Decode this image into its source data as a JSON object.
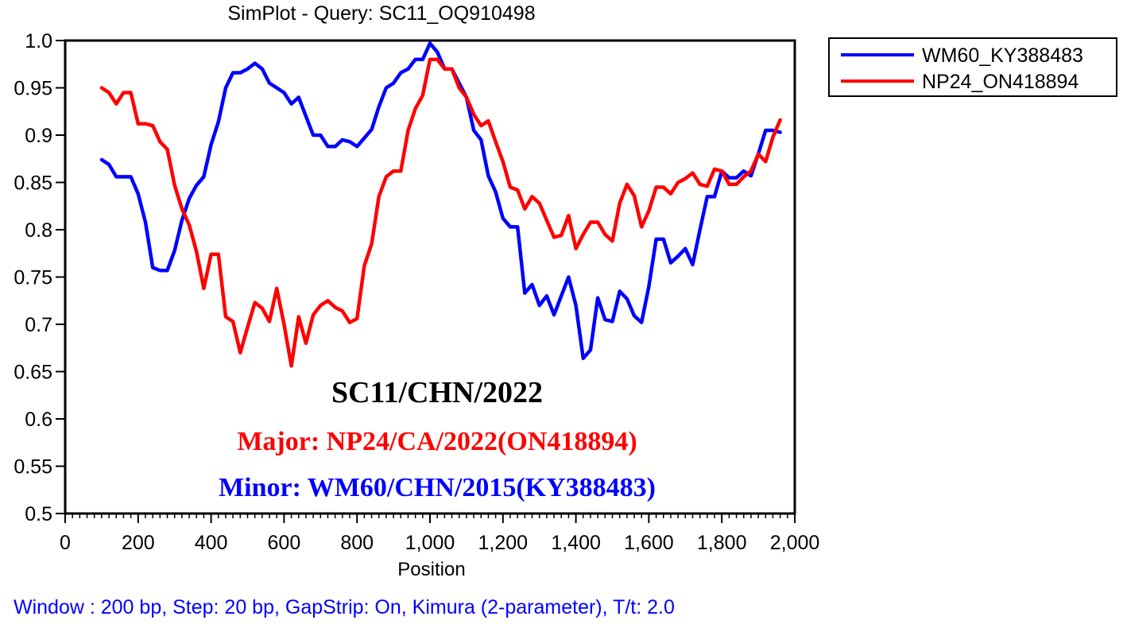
{
  "chart_data": {
    "type": "line",
    "title": "SimPlot - Query: SC11_OQ910498",
    "xlabel": "Position",
    "ylabel": "",
    "xlim": [
      0,
      2000
    ],
    "ylim": [
      0.5,
      1.0
    ],
    "x_ticks": [
      0,
      200,
      400,
      600,
      800,
      1000,
      1200,
      1400,
      1600,
      1800,
      2000
    ],
    "x_tick_labels": [
      "0",
      "200",
      "400",
      "600",
      "800",
      "1,000",
      "1,200",
      "1,400",
      "1,600",
      "1,800",
      "2,000"
    ],
    "y_ticks": [
      0.5,
      0.55,
      0.6,
      0.65,
      0.7,
      0.75,
      0.8,
      0.85,
      0.9,
      0.95,
      1.0
    ],
    "y_tick_labels": [
      "0.5",
      "0.55",
      "0.6",
      "0.65",
      "0.7",
      "0.75",
      "0.8",
      "0.85",
      "0.9",
      "0.95",
      "1.0"
    ],
    "grid": false,
    "legend_position": "outside-top-right",
    "series": [
      {
        "name": "WM60_KY388483",
        "color": "#0000ff",
        "x": [
          100,
          120,
          140,
          160,
          180,
          200,
          220,
          240,
          260,
          280,
          300,
          320,
          340,
          360,
          380,
          400,
          420,
          440,
          460,
          480,
          500,
          520,
          540,
          560,
          580,
          600,
          620,
          640,
          660,
          680,
          700,
          720,
          740,
          760,
          780,
          800,
          820,
          840,
          860,
          880,
          900,
          920,
          940,
          960,
          980,
          1000,
          1020,
          1040,
          1060,
          1080,
          1100,
          1120,
          1140,
          1160,
          1180,
          1200,
          1220,
          1240,
          1260,
          1280,
          1300,
          1320,
          1340,
          1360,
          1380,
          1400,
          1420,
          1440,
          1460,
          1480,
          1500,
          1520,
          1540,
          1560,
          1580,
          1600,
          1620,
          1640,
          1660,
          1680,
          1700,
          1720,
          1740,
          1760,
          1780,
          1800,
          1820,
          1840,
          1860,
          1880,
          1900,
          1920,
          1940,
          1960
        ],
        "values": [
          0.874,
          0.869,
          0.856,
          0.856,
          0.856,
          0.838,
          0.808,
          0.76,
          0.757,
          0.757,
          0.778,
          0.81,
          0.833,
          0.847,
          0.856,
          0.89,
          0.914,
          0.95,
          0.966,
          0.966,
          0.97,
          0.976,
          0.97,
          0.955,
          0.95,
          0.945,
          0.933,
          0.94,
          0.92,
          0.9,
          0.9,
          0.888,
          0.888,
          0.895,
          0.893,
          0.888,
          0.897,
          0.906,
          0.93,
          0.95,
          0.955,
          0.966,
          0.97,
          0.98,
          0.98,
          0.997,
          0.988,
          0.97,
          0.97,
          0.955,
          0.94,
          0.905,
          0.895,
          0.857,
          0.84,
          0.812,
          0.803,
          0.803,
          0.733,
          0.742,
          0.72,
          0.73,
          0.71,
          0.73,
          0.75,
          0.72,
          0.664,
          0.673,
          0.728,
          0.705,
          0.703,
          0.735,
          0.727,
          0.709,
          0.702,
          0.74,
          0.79,
          0.79,
          0.765,
          0.772,
          0.78,
          0.763,
          0.8,
          0.835,
          0.835,
          0.862,
          0.855,
          0.855,
          0.862,
          0.857,
          0.88,
          0.905,
          0.905,
          0.903
        ]
      },
      {
        "name": "NP24_ON418894",
        "color": "#ff0000",
        "x": [
          100,
          120,
          140,
          160,
          180,
          200,
          220,
          240,
          260,
          280,
          300,
          320,
          340,
          360,
          380,
          400,
          420,
          440,
          460,
          480,
          500,
          520,
          540,
          560,
          580,
          600,
          620,
          640,
          660,
          680,
          700,
          720,
          740,
          760,
          780,
          800,
          820,
          840,
          860,
          880,
          900,
          920,
          940,
          960,
          980,
          1000,
          1020,
          1040,
          1060,
          1080,
          1100,
          1120,
          1140,
          1160,
          1180,
          1200,
          1220,
          1240,
          1260,
          1280,
          1300,
          1320,
          1340,
          1360,
          1380,
          1400,
          1420,
          1440,
          1460,
          1480,
          1500,
          1520,
          1540,
          1560,
          1580,
          1600,
          1620,
          1640,
          1660,
          1680,
          1700,
          1720,
          1740,
          1760,
          1780,
          1800,
          1820,
          1840,
          1860,
          1880,
          1900,
          1920,
          1940,
          1960
        ],
        "values": [
          0.95,
          0.945,
          0.933,
          0.945,
          0.945,
          0.912,
          0.912,
          0.91,
          0.893,
          0.885,
          0.847,
          0.822,
          0.805,
          0.777,
          0.738,
          0.774,
          0.774,
          0.708,
          0.703,
          0.67,
          0.697,
          0.723,
          0.717,
          0.703,
          0.738,
          0.7,
          0.656,
          0.708,
          0.68,
          0.71,
          0.72,
          0.725,
          0.718,
          0.714,
          0.702,
          0.706,
          0.762,
          0.785,
          0.835,
          0.856,
          0.862,
          0.862,
          0.905,
          0.928,
          0.942,
          0.98,
          0.98,
          0.97,
          0.97,
          0.95,
          0.94,
          0.922,
          0.91,
          0.915,
          0.893,
          0.872,
          0.845,
          0.842,
          0.822,
          0.835,
          0.828,
          0.81,
          0.792,
          0.794,
          0.815,
          0.78,
          0.795,
          0.808,
          0.808,
          0.795,
          0.788,
          0.828,
          0.848,
          0.836,
          0.803,
          0.82,
          0.845,
          0.845,
          0.838,
          0.85,
          0.854,
          0.86,
          0.848,
          0.846,
          0.864,
          0.862,
          0.848,
          0.848,
          0.856,
          0.862,
          0.88,
          0.872,
          0.898,
          0.916
        ]
      }
    ],
    "annotations": [
      {
        "text": "SC11/CHN/2022",
        "color": "#000000"
      },
      {
        "text": "Major: NP24/CA/2022(ON418894)",
        "color": "#ff0000"
      },
      {
        "text": "Minor: WM60/CHN/2015(KY388483)",
        "color": "#0000ff"
      }
    ],
    "footer": "Window : 200 bp, Step: 20 bp, GapStrip: On, Kimura (2-parameter), T/t: 2.0",
    "footer_color": "#0000ff"
  }
}
